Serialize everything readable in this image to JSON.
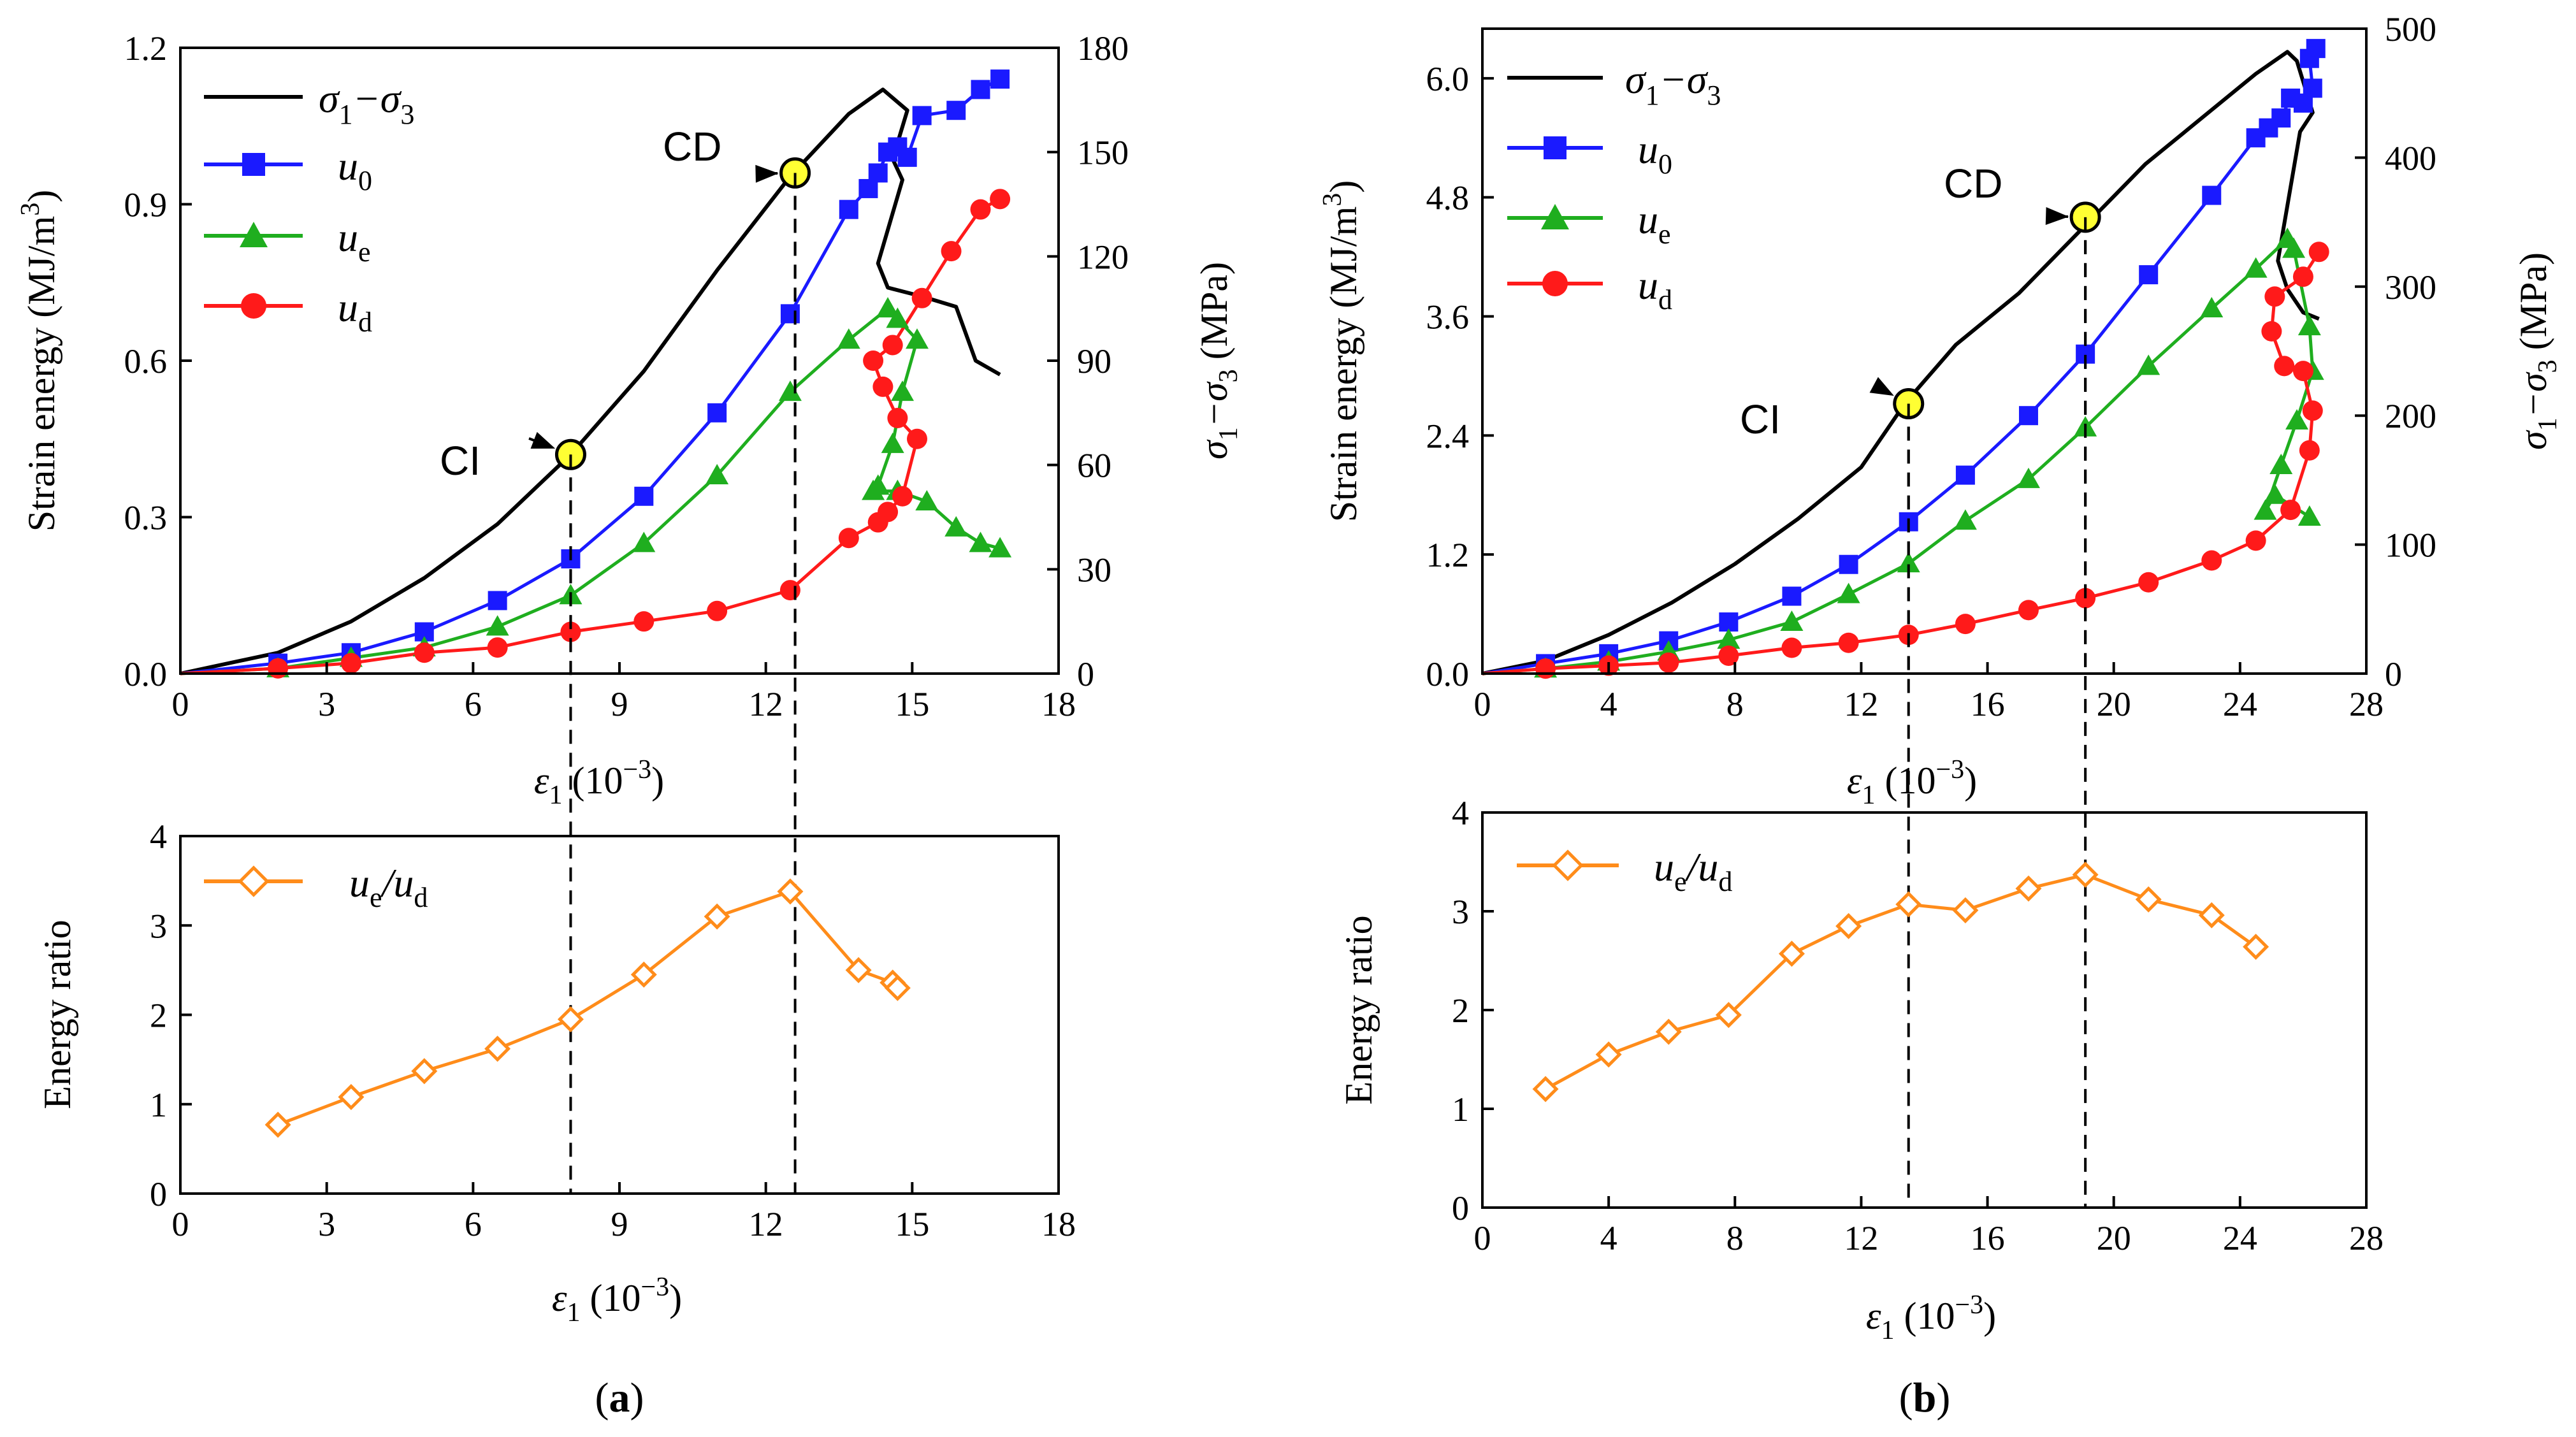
{
  "colors": {
    "stress": "#000000",
    "u0": "#1a1aff",
    "ue": "#1fae1f",
    "ud": "#ff1a1a",
    "ratio": "#ff8c1a",
    "marker": "#ffff33"
  },
  "legend_top": {
    "stress": [
      "σ",
      "1",
      "−σ",
      "3"
    ],
    "u0": [
      "u",
      "0"
    ],
    "ue": [
      "u",
      "e"
    ],
    "ud": [
      "u",
      "d"
    ]
  },
  "legend_bottom": {
    "ratio": [
      "u",
      "e",
      "/u",
      "d"
    ]
  },
  "callouts": {
    "ci": "CI",
    "cd": "CD"
  },
  "axis_titles": {
    "strain_energy": "Strain energy (MJ/m",
    "strain_energy_sup": "3",
    "strain_energy_close": ")",
    "stress_right": [
      "σ",
      "1",
      "−σ",
      "3",
      " (MPa)"
    ],
    "epsilon": [
      "ε",
      "1",
      " (10",
      "−3",
      ")"
    ],
    "energy_ratio": "Energy ratio"
  },
  "panel_labels": {
    "a": "a",
    "b": "b"
  },
  "chart_data": [
    {
      "type": "line",
      "panel": "a-top",
      "xlabel": "ε1 (10^-3)",
      "ylabel": "Strain energy (MJ/m^3)",
      "y2label": "σ1−σ3 (MPa)",
      "xlim": [
        0,
        18
      ],
      "ylim": [
        0,
        1.2
      ],
      "y2lim": [
        0,
        180
      ],
      "xticks": [
        "0",
        "3",
        "6",
        "9",
        "12",
        "15",
        "18"
      ],
      "yticks": [
        "0.0",
        "0.3",
        "0.6",
        "0.9",
        "1.2"
      ],
      "y2ticks": [
        "0",
        "30",
        "60",
        "90",
        "120",
        "150",
        "180"
      ],
      "series": [
        {
          "name": "σ1−σ3",
          "axis": "y2",
          "x": [
            0,
            2,
            3.5,
            5,
            6.5,
            8,
            9.5,
            11,
            12.5,
            13.7,
            14.4,
            14.9,
            14.6,
            14.8,
            14.3,
            14.5,
            15.2,
            15.9,
            16.3,
            16.8
          ],
          "values": [
            0,
            6,
            15,
            27.5,
            43,
            63,
            87,
            116,
            143,
            161,
            168,
            162,
            148,
            142,
            118,
            111,
            108.5,
            105.5,
            90,
            86
          ]
        },
        {
          "name": "u0",
          "axis": "y",
          "x": [
            0,
            2,
            3.5,
            5,
            6.5,
            8,
            9.5,
            11,
            12.5,
            13.7,
            14.1,
            14.3,
            14.5,
            14.7,
            14.9,
            15.2,
            15.9,
            16.4,
            16.8
          ],
          "values": [
            0,
            0.02,
            0.04,
            0.08,
            0.14,
            0.22,
            0.34,
            0.5,
            0.69,
            0.89,
            0.93,
            0.96,
            1.0,
            1.01,
            0.99,
            1.07,
            1.08,
            1.12,
            1.14
          ]
        },
        {
          "name": "ue",
          "axis": "y",
          "x": [
            0,
            2,
            3.5,
            5,
            6.5,
            8,
            9.5,
            11,
            12.5,
            13.7,
            14.5,
            14.7,
            15.1,
            14.8,
            14.6,
            14.3,
            14.2,
            14.7,
            15.3,
            15.9,
            16.4,
            16.8
          ],
          "values": [
            0,
            0.01,
            0.03,
            0.05,
            0.09,
            0.15,
            0.25,
            0.38,
            0.54,
            0.64,
            0.7,
            0.68,
            0.64,
            0.54,
            0.44,
            0.36,
            0.35,
            0.35,
            0.33,
            0.28,
            0.25,
            0.24
          ]
        },
        {
          "name": "ud",
          "axis": "y",
          "x": [
            0,
            2,
            3.5,
            5,
            6.5,
            8,
            9.5,
            11,
            12.5,
            13.7,
            14.3,
            14.5,
            14.8,
            15.1,
            14.7,
            14.4,
            14.2,
            14.6,
            15.2,
            15.8,
            16.4,
            16.8
          ],
          "values": [
            0,
            0.01,
            0.02,
            0.04,
            0.05,
            0.08,
            0.1,
            0.12,
            0.16,
            0.26,
            0.29,
            0.31,
            0.34,
            0.45,
            0.49,
            0.55,
            0.6,
            0.63,
            0.72,
            0.81,
            0.89,
            0.91
          ]
        }
      ],
      "annotations": [
        {
          "label": "CI",
          "x": 8.0,
          "y": 0.42
        },
        {
          "label": "CD",
          "x": 12.6,
          "y": 0.96
        }
      ]
    },
    {
      "type": "line",
      "panel": "a-bottom",
      "xlabel": "ε1 (10^-3)",
      "ylabel": "Energy ratio",
      "xlim": [
        0,
        18
      ],
      "ylim": [
        0,
        4
      ],
      "xticks": [
        "0",
        "3",
        "6",
        "9",
        "12",
        "15",
        "18"
      ],
      "yticks": [
        "0",
        "1",
        "2",
        "3",
        "4"
      ],
      "series": [
        {
          "name": "ue/ud",
          "x": [
            2,
            3.5,
            5,
            6.5,
            8,
            9.5,
            11,
            12.5,
            13.9,
            14.6,
            14.7
          ],
          "values": [
            0.77,
            1.08,
            1.37,
            1.62,
            1.95,
            2.45,
            3.1,
            3.38,
            2.5,
            2.36,
            2.3
          ]
        }
      ],
      "vlines": [
        8.0,
        12.6
      ]
    },
    {
      "type": "line",
      "panel": "b-top",
      "xlabel": "ε1 (10^-3)",
      "ylabel": "Strain energy (MJ/m^3)",
      "y2label": "σ1−σ3 (MPa)",
      "xlim": [
        0,
        28
      ],
      "ylim": [
        0,
        6.5
      ],
      "y2lim": [
        0,
        500
      ],
      "xticks": [
        "0",
        "4",
        "8",
        "12",
        "16",
        "20",
        "24",
        "28"
      ],
      "yticks": [
        "0.0",
        "1.2",
        "2.4",
        "3.6",
        "4.8",
        "6.0"
      ],
      "y2ticks": [
        "0",
        "100",
        "200",
        "300",
        "400",
        "500"
      ],
      "series": [
        {
          "name": "σ1−σ3",
          "axis": "y2",
          "x": [
            0,
            2,
            4,
            6,
            8,
            10,
            12,
            13.4,
            15,
            17,
            19,
            21,
            23,
            24.5,
            25.5,
            25.8,
            26.3,
            25.9,
            25.2,
            25.5,
            26.0,
            26.5
          ],
          "values": [
            0,
            10,
            30,
            55,
            85,
            120,
            160,
            210,
            255,
            295,
            345,
            395,
            435,
            465,
            482,
            475,
            435,
            420,
            320,
            298,
            280,
            275
          ]
        },
        {
          "name": "u0",
          "axis": "y",
          "x": [
            0,
            2,
            4,
            5.9,
            7.8,
            9.8,
            11.6,
            13.5,
            15.3,
            17.3,
            19.1,
            21.1,
            23.1,
            24.5,
            24.9,
            25.3,
            25.6,
            26.0,
            26.3,
            26.2,
            26.4
          ],
          "values": [
            0,
            0.1,
            0.2,
            0.33,
            0.52,
            0.78,
            1.1,
            1.53,
            2.0,
            2.6,
            3.22,
            4.02,
            4.82,
            5.4,
            5.5,
            5.6,
            5.8,
            5.75,
            5.9,
            6.2,
            6.3
          ]
        },
        {
          "name": "ue",
          "axis": "y",
          "x": [
            0,
            2,
            4,
            5.9,
            7.8,
            9.8,
            11.6,
            13.5,
            15.3,
            17.3,
            19.1,
            21.1,
            23.1,
            24.5,
            25.5,
            25.7,
            26.2,
            26.3,
            25.8,
            25.3,
            24.8,
            25.1,
            26.2
          ],
          "values": [
            0,
            0.05,
            0.12,
            0.22,
            0.34,
            0.52,
            0.8,
            1.11,
            1.54,
            1.96,
            2.48,
            3.1,
            3.68,
            4.08,
            4.38,
            4.28,
            3.5,
            3.05,
            2.55,
            2.1,
            1.64,
            1.8,
            1.58
          ]
        },
        {
          "name": "ud",
          "axis": "y",
          "x": [
            0,
            2,
            4,
            5.9,
            7.8,
            9.8,
            11.6,
            13.5,
            15.3,
            17.3,
            19.1,
            21.1,
            23.1,
            24.5,
            25.6,
            26.2,
            26.3,
            26.0,
            25.4,
            25.0,
            25.1,
            26.0,
            26.5
          ],
          "values": [
            0,
            0.05,
            0.08,
            0.11,
            0.18,
            0.26,
            0.31,
            0.39,
            0.5,
            0.64,
            0.76,
            0.92,
            1.14,
            1.34,
            1.65,
            2.25,
            2.65,
            3.05,
            3.1,
            3.45,
            3.8,
            4.0,
            4.25
          ]
        }
      ],
      "annotations": [
        {
          "label": "CI",
          "x": 13.5,
          "y": 2.72
        },
        {
          "label": "CD",
          "x": 19.1,
          "y": 4.6
        }
      ]
    },
    {
      "type": "line",
      "panel": "b-bottom",
      "xlabel": "ε1 (10^-3)",
      "ylabel": "Energy ratio",
      "xlim": [
        0,
        28
      ],
      "ylim": [
        0,
        4
      ],
      "xticks": [
        "0",
        "4",
        "8",
        "12",
        "16",
        "20",
        "24",
        "28"
      ],
      "yticks": [
        "0",
        "1",
        "2",
        "3",
        "4"
      ],
      "series": [
        {
          "name": "ue/ud",
          "x": [
            2,
            4,
            5.9,
            7.8,
            9.8,
            11.6,
            13.5,
            15.3,
            17.3,
            19.1,
            21.1,
            23.1,
            24.5
          ],
          "values": [
            1.2,
            1.55,
            1.78,
            1.95,
            2.57,
            2.85,
            3.07,
            3.01,
            3.23,
            3.37,
            3.12,
            2.96,
            2.64
          ]
        }
      ],
      "vlines": [
        13.5,
        19.1
      ]
    }
  ]
}
